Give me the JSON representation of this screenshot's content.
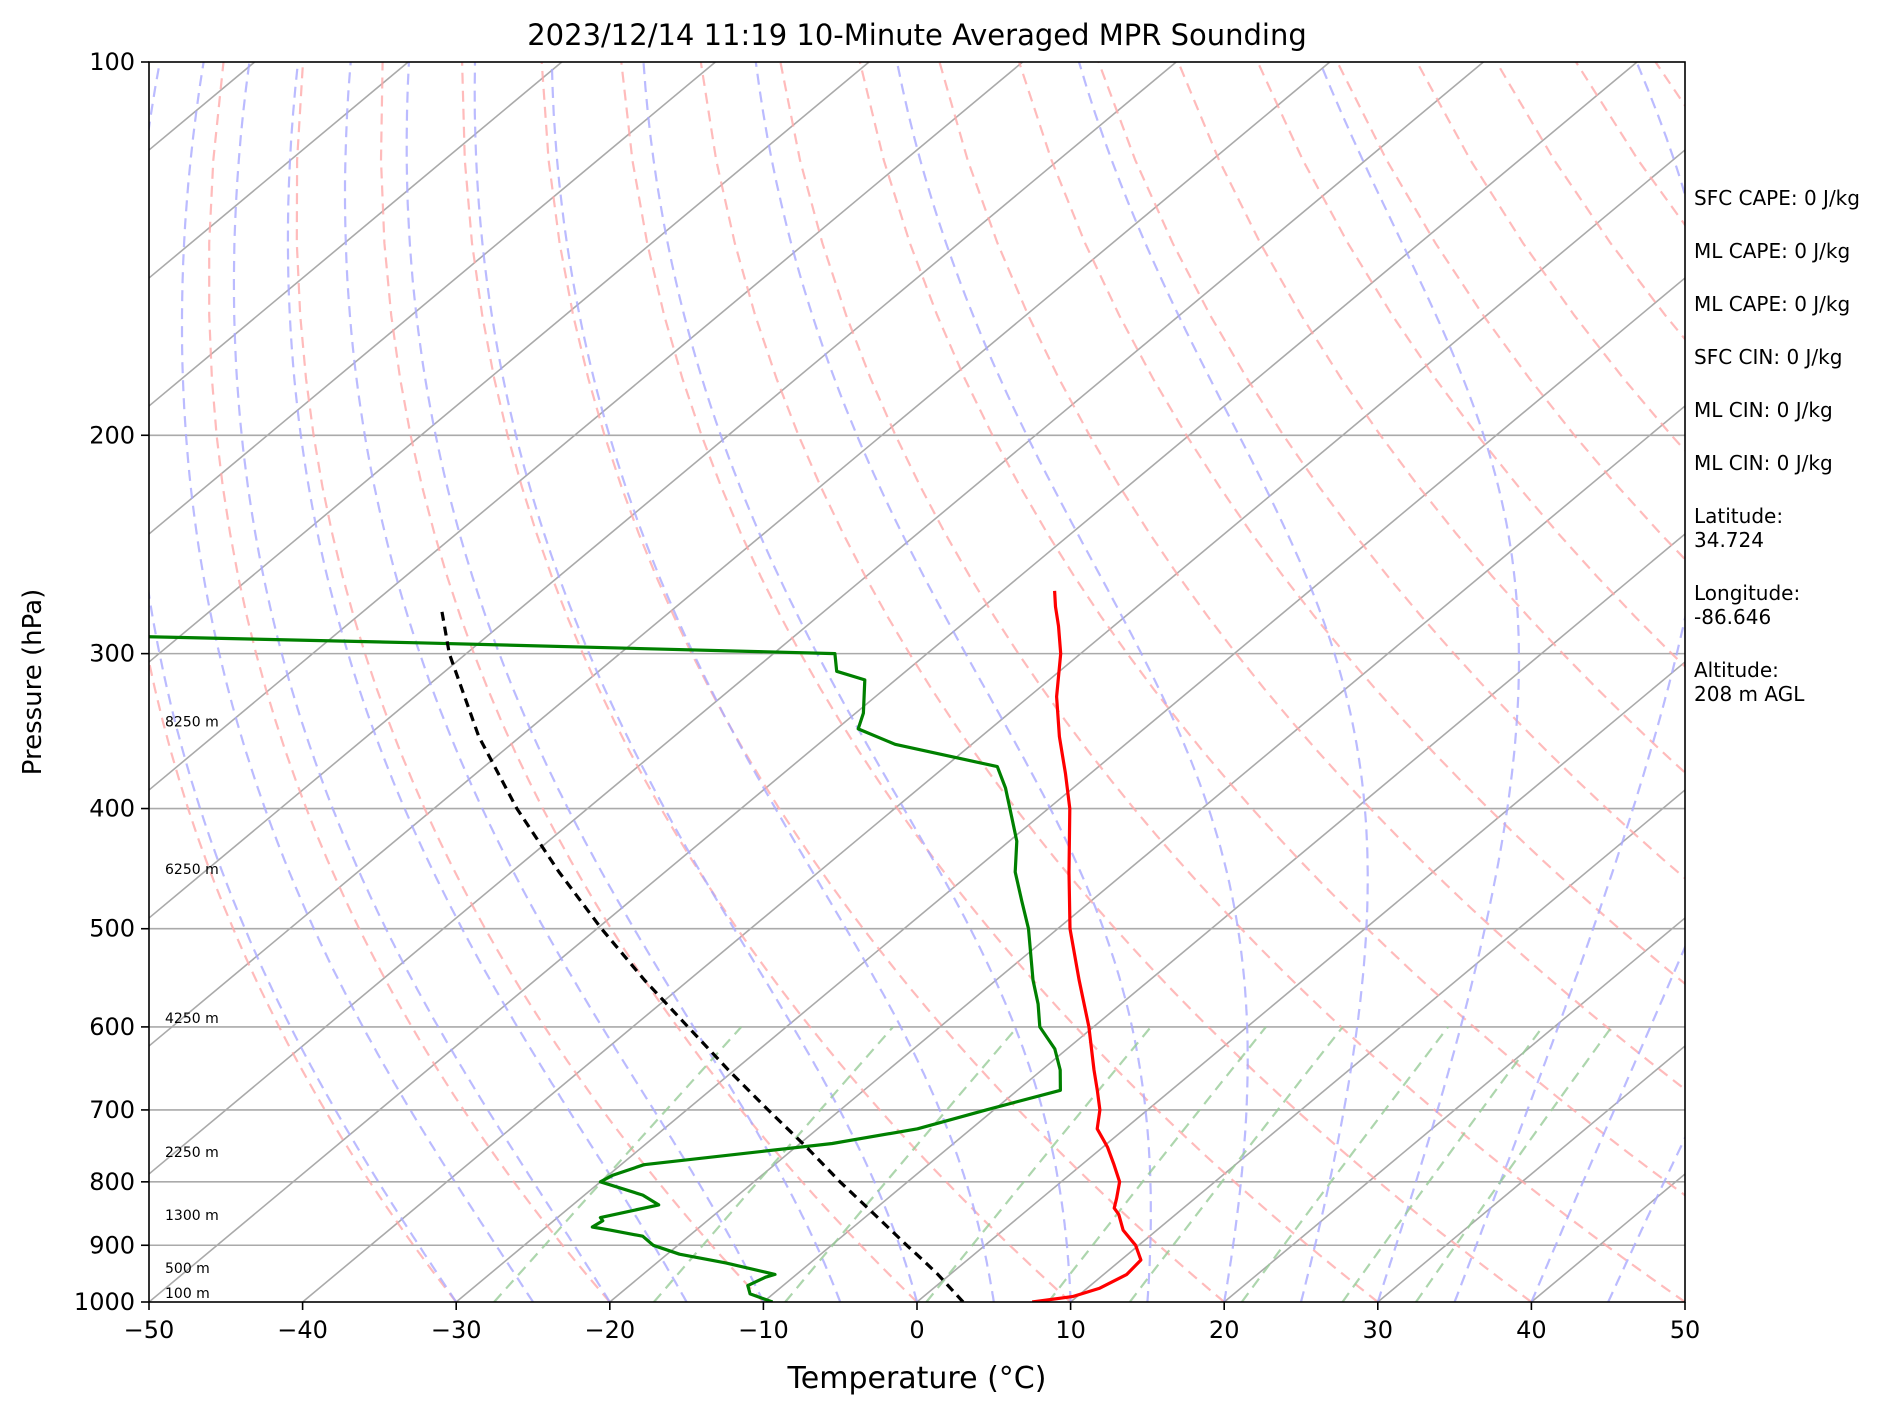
{
  "chart_data": {
    "type": "line",
    "title": "2023/12/14 11:19 10-Minute Averaged MPR Sounding",
    "xlabel": "Temperature (°C)",
    "ylabel": "Pressure (hPa)",
    "xlim": [
      -50,
      50
    ],
    "ylim": [
      1000,
      100
    ],
    "y_scale": "log",
    "x_ticks": [
      -50,
      -40,
      -30,
      -20,
      -10,
      0,
      10,
      20,
      30,
      40,
      50
    ],
    "x_tick_labels": [
      "−50",
      "−40",
      "−30",
      "−20",
      "−10",
      "0",
      "10",
      "20",
      "30",
      "40",
      "50"
    ],
    "y_ticks": [
      1000,
      900,
      800,
      700,
      600,
      500,
      400,
      300,
      200,
      100
    ],
    "y_tick_labels": [
      "1000",
      "900",
      "800",
      "700",
      "600",
      "500",
      "400",
      "300",
      "200",
      "100"
    ],
    "grid": true,
    "colors": {
      "temperature": "#ff0000",
      "dewpoint": "#008000",
      "parcel": "#000000",
      "isotherms": "#aaaaaa",
      "dry_adiabats": "#ffaaaa",
      "moist_adiabats": "#aaaaff",
      "mixing_ratio": "#99cc99"
    },
    "series": [
      {
        "key": "temperature",
        "pressure": [
          1000,
          990,
          975,
          950,
          925,
          900,
          875,
          850,
          840,
          825,
          800,
          775,
          750,
          725,
          700,
          675,
          650,
          600,
          550,
          500,
          450,
          400,
          375,
          350,
          325,
          300,
          285,
          275,
          267
        ],
        "values": [
          7.5,
          9.7,
          10.8,
          11.5,
          11.3,
          9.8,
          7.8,
          6.3,
          5.5,
          4.9,
          3.8,
          2.1,
          0.3,
          -1.8,
          -3.1,
          -4.8,
          -6.6,
          -10.3,
          -14.6,
          -19.2,
          -23.7,
          -28.6,
          -31.6,
          -34.9,
          -38.2,
          -41.3,
          -43.6,
          -45.3,
          -46.6
        ]
      },
      {
        "key": "dewpoint",
        "pressure": [
          1000,
          985,
          970,
          955,
          950,
          930,
          915,
          900,
          885,
          875,
          870,
          860,
          855,
          835,
          820,
          800,
          790,
          775,
          745,
          725,
          700,
          675,
          650,
          625,
          600,
          575,
          550,
          525,
          500,
          475,
          450,
          425,
          400,
          385,
          370,
          355,
          345,
          335,
          315,
          310,
          300,
          294,
          290
        ],
        "values": [
          -9.4,
          -11.5,
          -12.3,
          -11.8,
          -11.4,
          -15.5,
          -19.2,
          -21.6,
          -23.0,
          -25.6,
          -27.0,
          -26.8,
          -27.2,
          -24.4,
          -26.2,
          -30.0,
          -29.7,
          -28.5,
          -17.9,
          -13.5,
          -10.5,
          -7.2,
          -8.8,
          -10.8,
          -13.5,
          -15.4,
          -17.6,
          -19.7,
          -21.9,
          -24.5,
          -27.2,
          -29.5,
          -32.5,
          -34.4,
          -36.6,
          -45.0,
          -48.6,
          -49.5,
          -52.0,
          -54.5,
          -56.0,
          -84.0,
          -106.0
        ]
      },
      {
        "key": "parcel",
        "pressure": [
          1000,
          950,
          925,
          900,
          850,
          800,
          750,
          700,
          650,
          600,
          550,
          500,
          450,
          400,
          350,
          300,
          275
        ],
        "values": [
          3,
          -0.8,
          -2.9,
          -5.1,
          -9.6,
          -14.4,
          -19.3,
          -24.7,
          -30.4,
          -36.4,
          -42.9,
          -49.7,
          -56.9,
          -64.6,
          -72.7,
          -81.1,
          -85.3
        ]
      }
    ],
    "height_labels": [
      {
        "label": "100 m",
        "pressure": 1000
      },
      {
        "label": "500 m",
        "pressure": 955
      },
      {
        "label": "1300 m",
        "pressure": 865
      },
      {
        "label": "2250 m",
        "pressure": 770
      },
      {
        "label": "4250 m",
        "pressure": 600
      },
      {
        "label": "6250 m",
        "pressure": 455
      },
      {
        "label": "8250 m",
        "pressure": 346
      }
    ],
    "annotations": [
      "SFC CAPE: 0 J/kg",
      "ML CAPE: 0 J/kg",
      "ML CAPE: 0 J/kg",
      "SFC CIN: 0 J/kg",
      "ML CIN: 0 J/kg",
      "ML CIN: 0 J/kg",
      "Latitude:\n34.724",
      "Longitude:\n-86.646",
      "Altitude:\n208 m AGL"
    ]
  }
}
